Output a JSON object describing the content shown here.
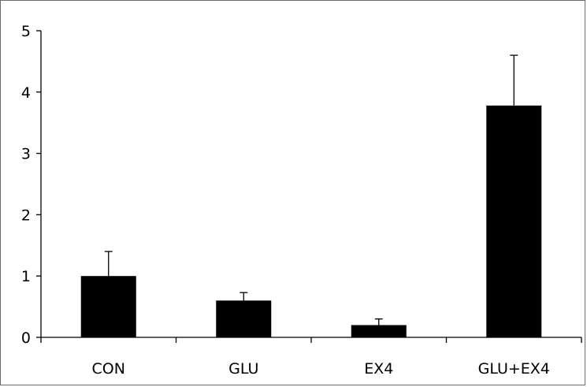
{
  "chart_data": {
    "type": "bar",
    "title": "",
    "xlabel": "",
    "ylabel": "",
    "categories": [
      "CON",
      "GLU",
      "EX4",
      "GLU+EX4"
    ],
    "values": [
      1.0,
      0.6,
      0.2,
      3.78
    ],
    "error_plus": [
      0.4,
      0.13,
      0.1,
      0.82
    ],
    "ylim": [
      0,
      5
    ],
    "yticks": [
      0,
      1,
      2,
      3,
      4,
      5
    ],
    "ytick_labels": [
      "0",
      "1",
      "2",
      "3",
      "4",
      "5"
    ],
    "grid": false,
    "legend": "none",
    "bar_color": "#000000"
  }
}
